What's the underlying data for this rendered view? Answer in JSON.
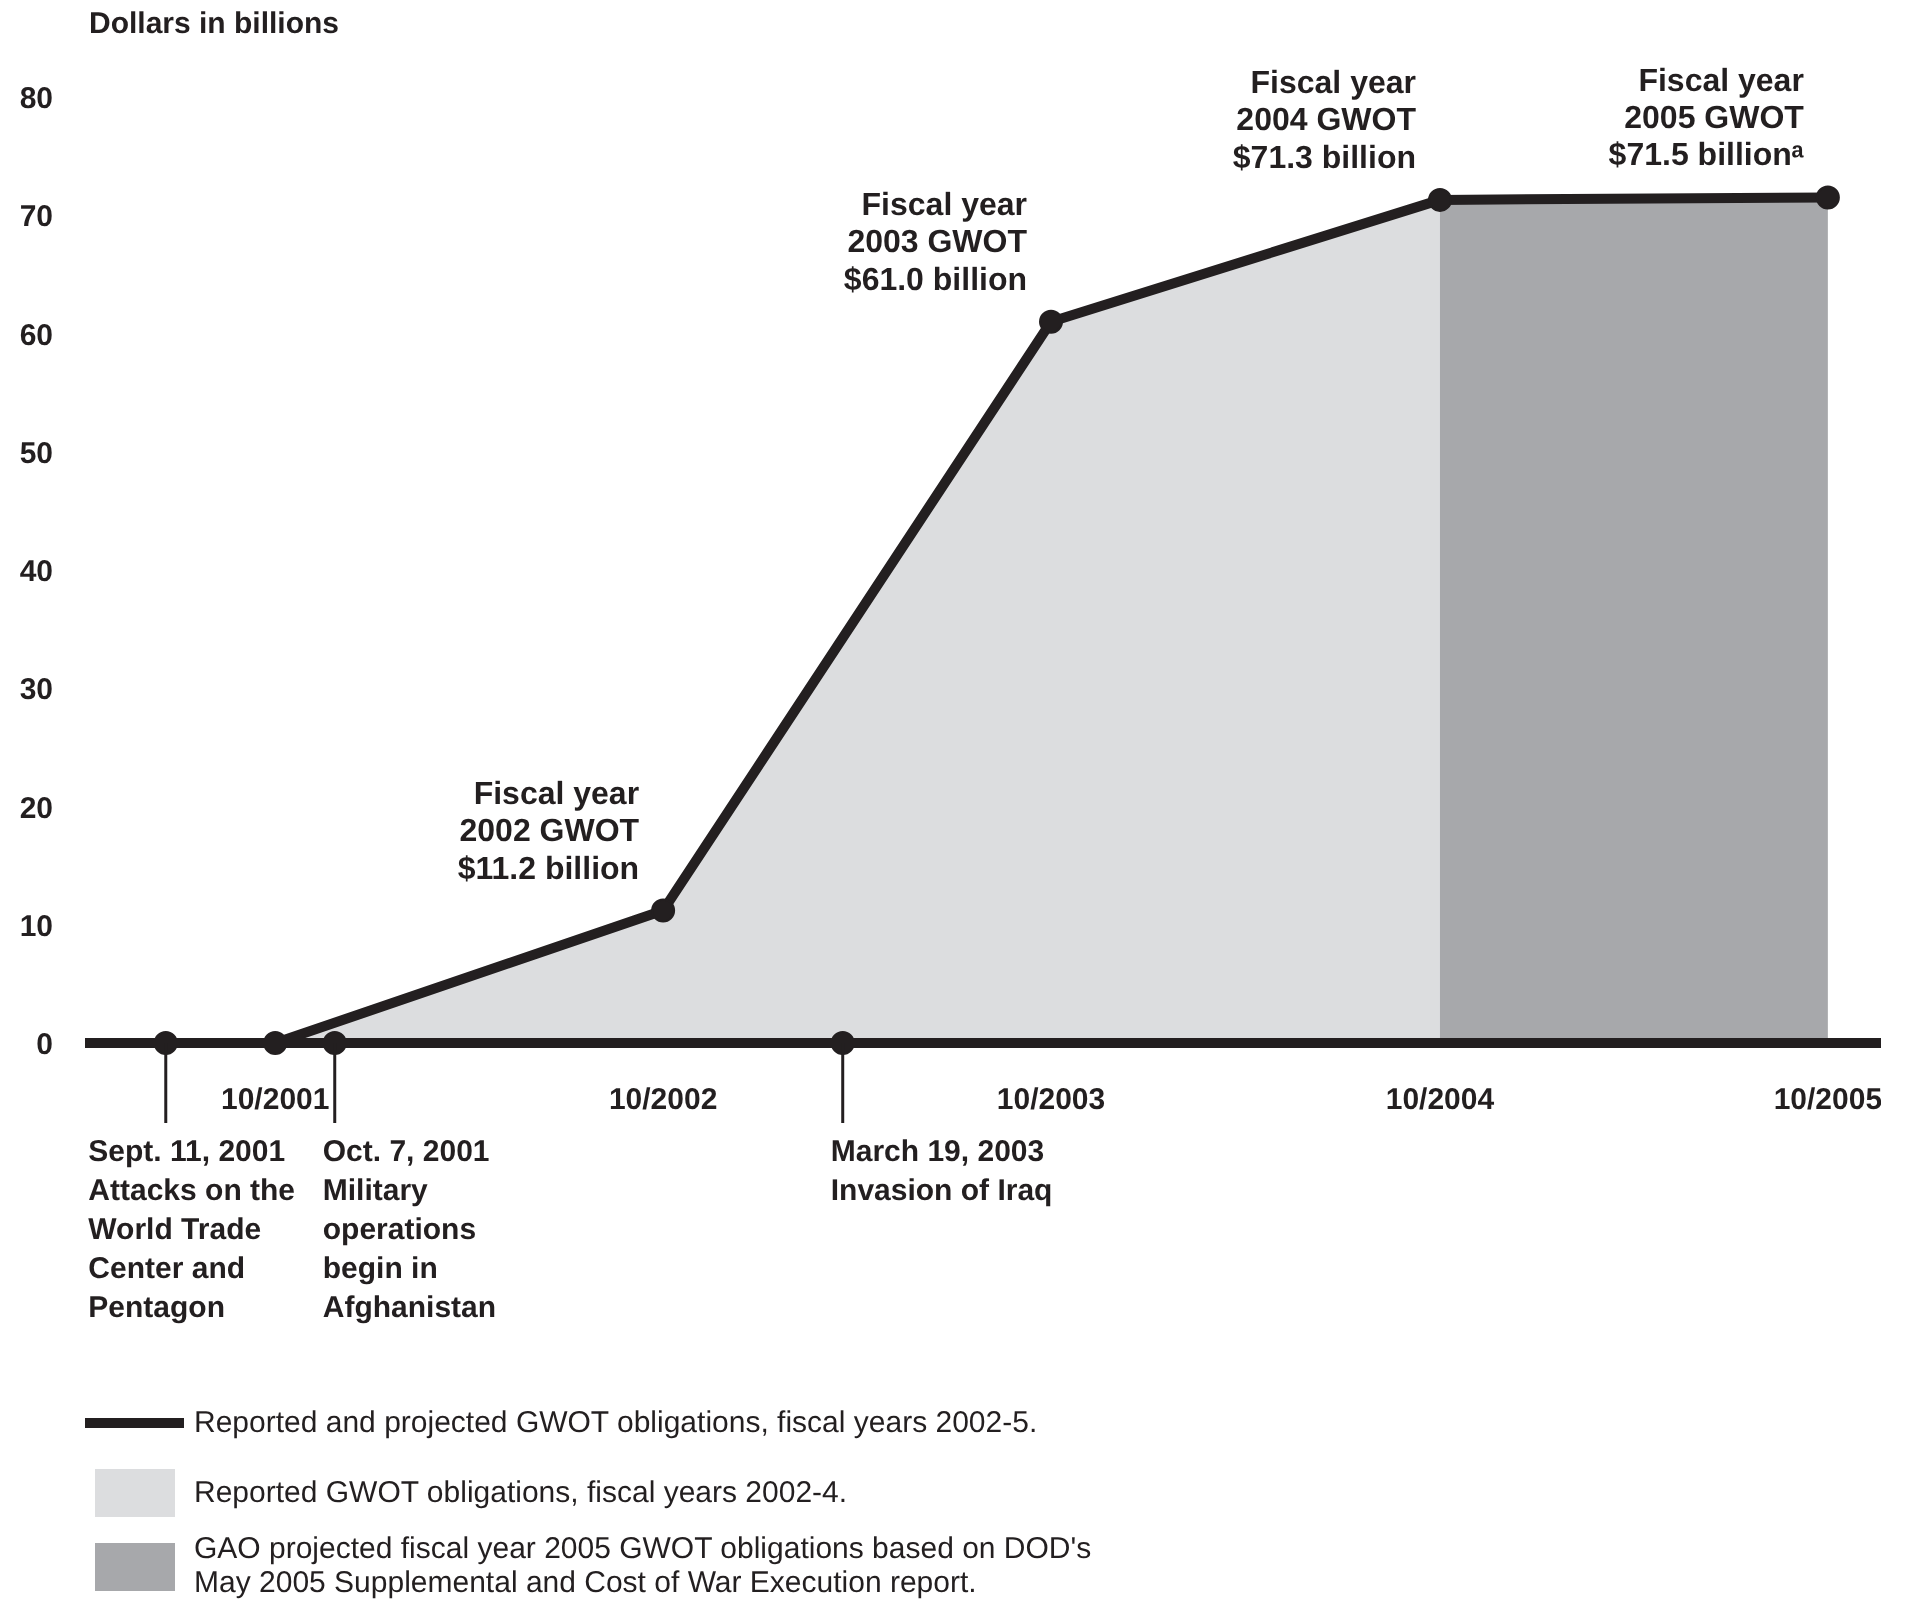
{
  "chart_data": {
    "type": "line",
    "ylabel": "Dollars in billions",
    "xlim": [
      "2001-04-05",
      "2005-11-20"
    ],
    "ylim": [
      0,
      80
    ],
    "xticks": [
      {
        "value": "2001-10",
        "label": "10/2001"
      },
      {
        "value": "2002-10",
        "label": "10/2002"
      },
      {
        "value": "2003-10",
        "label": "10/2003"
      },
      {
        "value": "2004-10",
        "label": "10/2004"
      },
      {
        "value": "2005-10",
        "label": "10/2005"
      }
    ],
    "yticks": [
      0,
      10,
      20,
      30,
      40,
      50,
      60,
      70,
      80
    ],
    "grid": false,
    "legend": "bottom",
    "series": [
      {
        "type": "area",
        "name": "Reported GWOT obligations, fiscal years 2002-4.",
        "color": "#dcdddf",
        "x": [
          "2001-10",
          "2002-10",
          "2003-10",
          "2004-10"
        ],
        "values": [
          0,
          11.2,
          61.0,
          71.3
        ]
      },
      {
        "type": "area",
        "name": "GAO projected fiscal year 2005 GWOT obligations based on DOD's\nMay 2005 Supplemental and Cost of War Execution report.",
        "color": "#a7a8ab",
        "x": [
          "2004-10",
          "2005-10"
        ],
        "values": [
          71.3,
          71.5
        ]
      },
      {
        "name": "Reported and projected GWOT obligations, fiscal years 2002-5.",
        "color": "#231f20",
        "marker": "circle",
        "x": [
          "2001-10",
          "2002-10",
          "2003-10",
          "2004-10",
          "2005-10"
        ],
        "values": [
          0,
          11.2,
          61.0,
          71.3,
          71.5
        ]
      },
      {
        "type": "scatter",
        "color": "#231f20",
        "marker": "circle",
        "x": [
          "2001-06-20",
          "2001-11-26",
          "2003-03-19"
        ],
        "values": [
          0,
          0,
          0
        ]
      }
    ],
    "annotations": [
      {
        "text": "Fiscal year\n2002 GWOT\n$11.2 billion",
        "x": "2002-10",
        "y": 11.2
      },
      {
        "text": "Fiscal year\n2003 GWOT\n$61.0 billion",
        "x": "2003-10",
        "y": 61.0
      },
      {
        "text": "Fiscal year\n2004 GWOT\n$71.3 billion",
        "x": "2004-10",
        "y": 71.3
      },
      {
        "text": "Fiscal year\n2005 GWOT\n$71.5 billionᵃ",
        "x": "2005-10",
        "y": 71.5
      },
      {
        "text": "Sept. 11, 2001\nAttacks on the\nWorld Trade\nCenter and\nPentagon",
        "x": "2001-06-20",
        "y": 0
      },
      {
        "text": "Oct. 7, 2001\nMilitary\noperations\nbegin in\nAfghanistan",
        "x": "2001-11-26",
        "y": 0
      },
      {
        "text": "March 19, 2003\nInvasion of Iraq",
        "x": "2003-03-19",
        "y": 0
      }
    ]
  }
}
